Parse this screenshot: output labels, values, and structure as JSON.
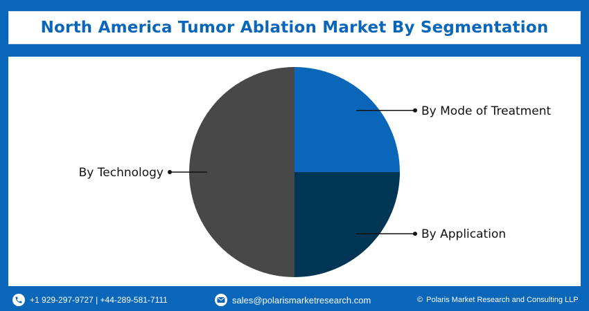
{
  "header": {
    "title": "North America Tumor Ablation Market By Segmentation"
  },
  "chart_data": {
    "type": "pie",
    "title": "North America Tumor Ablation Market By Segmentation",
    "slices": [
      {
        "label": "By Mode of Treatment",
        "value": 25,
        "color": "#0a66b8"
      },
      {
        "label": "By Application",
        "value": 25,
        "color": "#003554"
      },
      {
        "label": "By Technology",
        "value": 50,
        "color": "#484848"
      }
    ],
    "start_angle": "12 o'clock, clockwise",
    "legend": "callout labels"
  },
  "footer": {
    "phone": "+1 929-297-9727 | +44-289-581-7111",
    "email": "sales@polarismarketresearch.com",
    "copyright": "Polaris Market Research and Consulting LLP",
    "copyright_symbol": "©",
    "phone_icon": "phone-icon",
    "email_icon": "envelope-icon"
  }
}
